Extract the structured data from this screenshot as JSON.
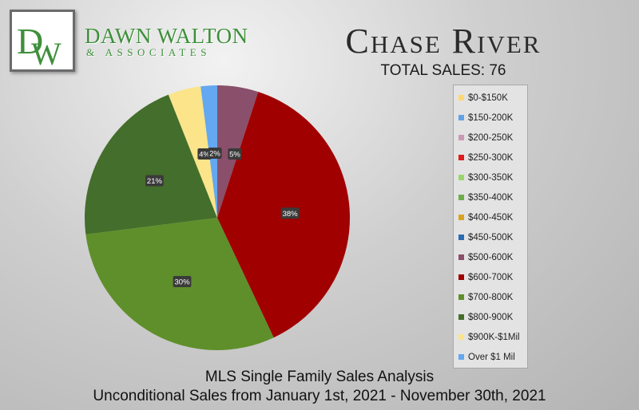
{
  "brand": {
    "logo_monogram": "DW",
    "name": "DAWN WALTON",
    "sub": "& ASSOCIATES"
  },
  "header": {
    "title": "Chase River",
    "total_sales": "TOTAL SALES: 76"
  },
  "footer": {
    "line1": "MLS Single Family Sales Analysis",
    "line2": "Unconditional Sales from January 1st, 2021 - November 30th, 2021"
  },
  "chart_data": {
    "type": "pie",
    "title": "Chase River",
    "legend_position": "right",
    "categories": [
      "$0-$150K",
      "$150-200K",
      "$200-250K",
      "$250-300K",
      "$300-350K",
      "$350-400K",
      "$400-450K",
      "$450-500K",
      "$500-600K",
      "$600-700K",
      "$700-800K",
      "$800-900K",
      "$900K-$1Mil",
      "Over $1 Mil"
    ],
    "colors": [
      "#ffd970",
      "#62a3e8",
      "#cc99b5",
      "#e01b1b",
      "#99d66b",
      "#6fad4a",
      "#d9a321",
      "#2a6bb3",
      "#8a4f6a",
      "#a10000",
      "#5f8f2a",
      "#446e2b",
      "#fbe48a",
      "#63a8f0"
    ],
    "values": [
      0,
      0,
      0,
      0,
      0,
      0,
      0,
      0,
      5,
      38,
      30,
      21,
      4,
      2
    ],
    "labels": [
      "",
      "",
      "",
      "",
      "",
      "",
      "",
      "",
      "5%",
      "38%",
      "30%",
      "21%",
      "4%",
      "2%"
    ]
  }
}
